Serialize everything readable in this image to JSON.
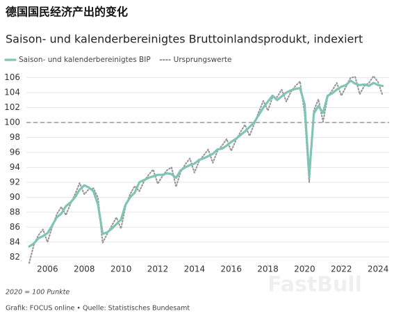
{
  "chart_data": {
    "type": "line",
    "title": "德国国民经济产出的变化",
    "subtitle": "Saison- und kalenderbereinigtes Bruttoinlandsprodukt, indexiert",
    "note": "2020 = 100 Punkte",
    "source": "Grafik: FOCUS online • Quelle: Statistisches Bundesamt",
    "watermark": "FastBull",
    "x": [
      2005,
      2005.25,
      2005.5,
      2005.75,
      2006,
      2006.25,
      2006.5,
      2006.75,
      2007,
      2007.25,
      2007.5,
      2007.75,
      2008,
      2008.25,
      2008.5,
      2008.75,
      2009,
      2009.25,
      2009.5,
      2009.75,
      2010,
      2010.25,
      2010.5,
      2010.75,
      2011,
      2011.25,
      2011.5,
      2011.75,
      2012,
      2012.25,
      2012.5,
      2012.75,
      2013,
      2013.25,
      2013.5,
      2013.75,
      2014,
      2014.25,
      2014.5,
      2014.75,
      2015,
      2015.25,
      2015.5,
      2015.75,
      2016,
      2016.25,
      2016.5,
      2016.75,
      2017,
      2017.25,
      2017.5,
      2017.75,
      2018,
      2018.25,
      2018.5,
      2018.75,
      2019,
      2019.25,
      2019.5,
      2019.75,
      2020,
      2020.25,
      2020.5,
      2020.75,
      2021,
      2021.25,
      2021.5,
      2021.75,
      2022,
      2022.25,
      2022.5,
      2022.75,
      2023,
      2023.25,
      2023.5,
      2023.75,
      2024,
      2024.25
    ],
    "series": [
      {
        "name": "Saison- und kalenderbereinigtes BIP",
        "color": "#7fc4b4",
        "style": "solid",
        "values": [
          83.4,
          83.8,
          84.5,
          84.8,
          85.2,
          86.2,
          87.3,
          87.8,
          88.8,
          89.3,
          90.0,
          91.0,
          91.6,
          91.3,
          90.8,
          89.0,
          85.1,
          85.3,
          85.8,
          86.4,
          87.0,
          89.0,
          90.0,
          90.6,
          92.0,
          92.3,
          92.6,
          92.8,
          93.0,
          93.0,
          93.2,
          93.1,
          92.6,
          93.6,
          94.0,
          94.3,
          94.5,
          95.0,
          95.2,
          95.5,
          95.8,
          96.4,
          96.5,
          96.9,
          97.4,
          97.8,
          98.3,
          98.8,
          99.4,
          100.0,
          101.0,
          102.0,
          102.8,
          103.6,
          103.0,
          103.5,
          104.0,
          104.3,
          104.5,
          104.6,
          102.4,
          92.8,
          101.2,
          102.2,
          101.3,
          103.6,
          103.9,
          104.4,
          104.8,
          105.0,
          105.6,
          105.2,
          105.0,
          105.1,
          104.9,
          105.3,
          105.0,
          104.9
        ]
      },
      {
        "name": "Ursprungswerte",
        "color": "#9a9a9a",
        "style": "dotted",
        "values": [
          81.2,
          83.6,
          84.9,
          85.7,
          84.0,
          86.0,
          87.7,
          88.7,
          87.6,
          89.1,
          90.4,
          91.9,
          90.4,
          91.1,
          91.2,
          89.9,
          83.9,
          85.1,
          86.2,
          87.3,
          85.8,
          88.8,
          90.4,
          91.5,
          90.8,
          92.1,
          93.0,
          93.7,
          91.8,
          92.8,
          93.6,
          94.0,
          91.4,
          93.4,
          94.4,
          95.2,
          93.3,
          94.8,
          95.6,
          96.4,
          94.6,
          96.2,
          96.9,
          97.8,
          96.2,
          97.6,
          98.7,
          99.7,
          98.2,
          99.8,
          101.4,
          102.9,
          101.6,
          103.4,
          103.4,
          104.4,
          102.8,
          104.1,
          104.9,
          105.5,
          101.2,
          92.0,
          101.6,
          103.1,
          100.1,
          103.4,
          104.3,
          105.3,
          103.6,
          104.8,
          106.0,
          106.1,
          103.8,
          104.9,
          105.3,
          106.2,
          105.4,
          103.6
        ]
      }
    ],
    "reference_line": 100,
    "xlim": [
      2004.85,
      2024.6
    ],
    "xticks": [
      2006,
      2008,
      2010,
      2012,
      2014,
      2016,
      2018,
      2020,
      2022,
      2024
    ],
    "ylim": [
      81,
      106.8
    ],
    "yticks": [
      82,
      84,
      86,
      88,
      90,
      92,
      94,
      96,
      98,
      100,
      102,
      104,
      106
    ],
    "grid": true,
    "legend": "top-left"
  }
}
